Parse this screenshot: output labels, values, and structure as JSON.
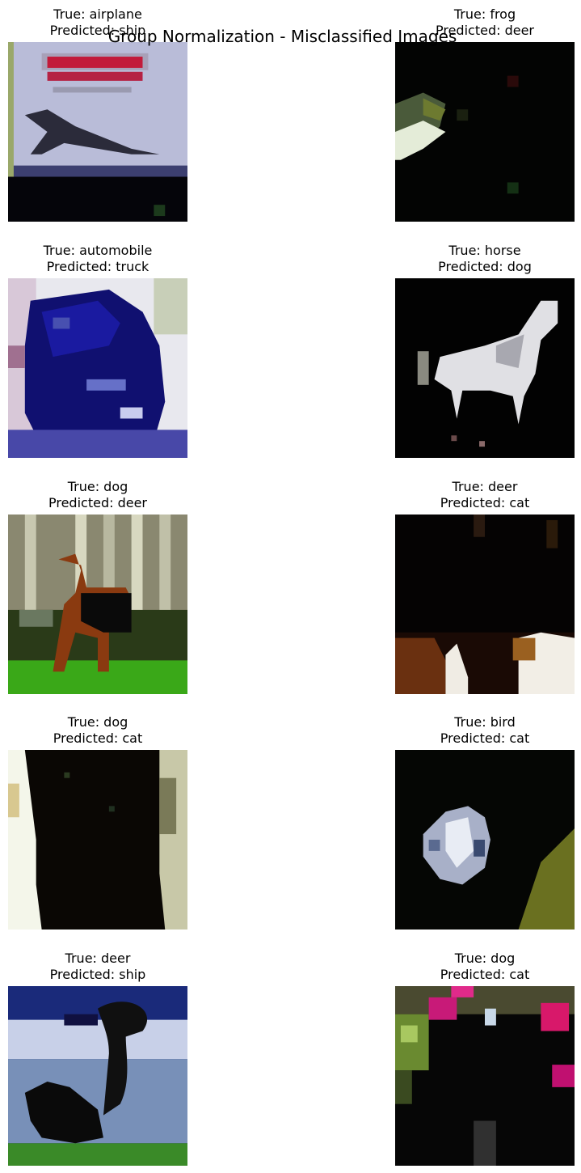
{
  "title": "Group Normalization - Misclassified Images",
  "items": [
    {
      "true_label": "True: airplane",
      "predicted_label": "Predicted: ship"
    },
    {
      "true_label": "True: frog",
      "predicted_label": "Predicted: deer"
    },
    {
      "true_label": "True: automobile",
      "predicted_label": "Predicted: truck"
    },
    {
      "true_label": "True: horse",
      "predicted_label": "Predicted: dog"
    },
    {
      "true_label": "True: dog",
      "predicted_label": "Predicted: deer"
    },
    {
      "true_label": "True: deer",
      "predicted_label": "Predicted: cat"
    },
    {
      "true_label": "True: dog",
      "predicted_label": "Predicted: cat"
    },
    {
      "true_label": "True: bird",
      "predicted_label": "Predicted: cat"
    },
    {
      "true_label": "True: deer",
      "predicted_label": "Predicted: ship"
    },
    {
      "true_label": "True: dog",
      "predicted_label": "Predicted: cat"
    }
  ]
}
